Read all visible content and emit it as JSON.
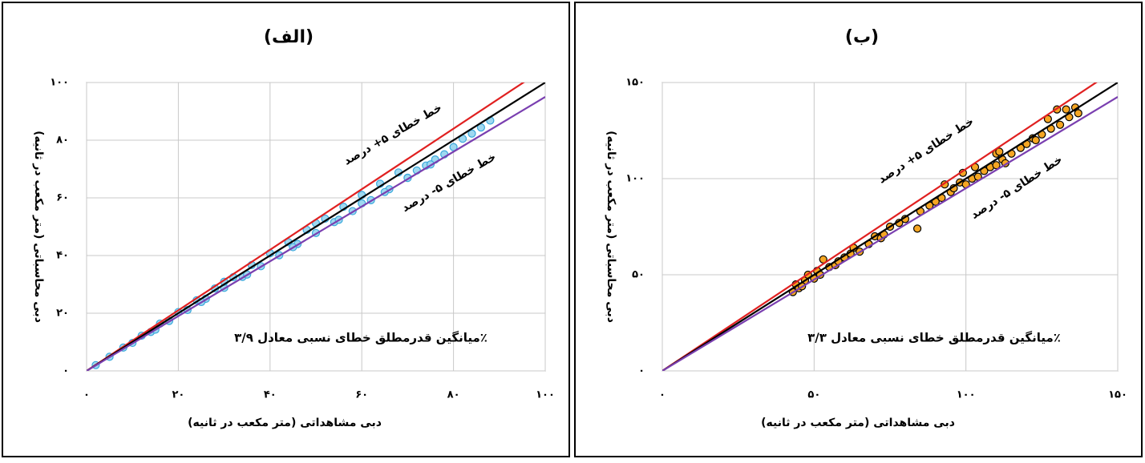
{
  "chart_data": [
    {
      "type": "scatter",
      "title": "(الف)",
      "x_label": "دبی مشاهداتی (متر مکعب در ثانیه)",
      "y_label": "دبی محاسباتی (متر مکعب در ثانیه)",
      "xlim": [
        0,
        100
      ],
      "ylim": [
        0,
        100
      ],
      "grid": true,
      "xticks": [
        {
          "value": 0,
          "label": "۰"
        },
        {
          "value": 20,
          "label": "۲۰"
        },
        {
          "value": 40,
          "label": "۴۰"
        },
        {
          "value": 60,
          "label": "۶۰"
        },
        {
          "value": 80,
          "label": "۸۰"
        },
        {
          "value": 100,
          "label": "۱۰۰"
        }
      ],
      "yticks": [
        {
          "value": 0,
          "label": "۰"
        },
        {
          "value": 20,
          "label": "۲۰"
        },
        {
          "value": 40,
          "label": "۴۰"
        },
        {
          "value": 60,
          "label": "۶۰"
        },
        {
          "value": 80,
          "label": "۸۰"
        },
        {
          "value": 100,
          "label": "۱۰۰"
        }
      ],
      "series": [
        {
          "color": "#9fd8f0",
          "edgecolor": "#3aa8dc",
          "x": [
            2,
            5,
            8,
            10,
            12,
            14,
            16,
            18,
            20,
            22,
            24,
            26,
            28,
            30,
            32,
            34,
            36,
            38,
            40,
            42,
            44,
            46,
            48,
            50,
            52,
            54,
            56,
            58,
            60,
            62,
            64,
            66,
            68,
            70,
            72,
            74,
            76,
            78,
            80,
            82,
            84,
            86,
            88,
            15,
            25,
            35,
            45,
            55,
            65,
            75,
            30,
            50,
            60,
            70
          ],
          "values": [
            2,
            4.9,
            8.1,
            9.7,
            12.2,
            13.5,
            16.4,
            17.3,
            20.4,
            21.1,
            24.5,
            25,
            28.6,
            28.8,
            32.5,
            32.6,
            36.7,
            36.3,
            40.8,
            40.1,
            44.6,
            44,
            48.9,
            47.8,
            52.8,
            51.6,
            56.9,
            55.4,
            61,
            59.2,
            64.9,
            63,
            68.8,
            67,
            69.5,
            71.2,
            73.3,
            75.1,
            77.6,
            80.5,
            82.3,
            84.4,
            86.8,
            14.3,
            23.9,
            33.4,
            42.9,
            52.4,
            62,
            71.6,
            30.9,
            51.2,
            58.1,
            66.9
          ]
        }
      ],
      "lines": [
        {
          "color": "#e02020",
          "x": [
            0,
            100
          ],
          "y": [
            0,
            105
          ]
        },
        {
          "color": "#000000",
          "x": [
            0,
            100
          ],
          "y": [
            0,
            100
          ]
        },
        {
          "color": "#7a3fb0",
          "x": [
            0,
            100
          ],
          "y": [
            0,
            95
          ]
        }
      ],
      "annotations": [
        "خط خطای ۵+ درصد",
        "خط خطای ۵- درصد",
        "میانگین قدرمطلق خطای نسبی معادل ۳/۹٪"
      ]
    },
    {
      "type": "scatter",
      "title": "(ب)",
      "x_label": "دبی مشاهداتی (متر مکعب در ثانیه)",
      "y_label": "دبی محاسباتی (متر مکعب در ثانیه)",
      "xlim": [
        0,
        150
      ],
      "ylim": [
        0,
        150
      ],
      "grid": true,
      "xticks": [
        {
          "value": 0,
          "label": "۰"
        },
        {
          "value": 50,
          "label": "۵۰"
        },
        {
          "value": 100,
          "label": "۱۰۰"
        },
        {
          "value": 150,
          "label": "۱۵۰"
        }
      ],
      "yticks": [
        {
          "value": 0,
          "label": "۰"
        },
        {
          "value": 50,
          "label": "۵۰"
        },
        {
          "value": 100,
          "label": "۱۰۰"
        },
        {
          "value": 150,
          "label": "۱۵۰"
        }
      ],
      "series": [
        {
          "color": "#f5a623",
          "edgecolor": "#000000",
          "x": [
            43,
            44,
            45,
            47,
            48,
            46,
            50,
            51,
            52,
            53,
            55,
            57,
            58,
            60,
            62,
            63,
            65,
            68,
            70,
            72,
            73,
            75,
            78,
            80,
            84,
            85,
            88,
            90,
            92,
            93,
            95,
            96,
            98,
            99,
            100,
            102,
            103,
            104,
            106,
            108,
            110,
            110,
            111,
            112,
            113,
            115,
            118,
            120,
            122,
            123,
            125,
            127,
            128,
            130,
            131,
            133,
            134,
            136,
            137
          ],
          "values": [
            41,
            45,
            43,
            47,
            50,
            44,
            48,
            52,
            50,
            58,
            54,
            55,
            57,
            59,
            61,
            64,
            62,
            66,
            70,
            69,
            71,
            75,
            77,
            79,
            74,
            83,
            86,
            88,
            90,
            97,
            93,
            95,
            98,
            103,
            97,
            100,
            106,
            101,
            104,
            106,
            113,
            107,
            114,
            110,
            108,
            113,
            116,
            118,
            121,
            120,
            123,
            131,
            126,
            136,
            128,
            136,
            132,
            137,
            134
          ]
        }
      ],
      "lines": [
        {
          "color": "#e02020",
          "x": [
            0,
            150
          ],
          "y": [
            0,
            157.5
          ]
        },
        {
          "color": "#000000",
          "x": [
            0,
            150
          ],
          "y": [
            0,
            150
          ]
        },
        {
          "color": "#7a3fb0",
          "x": [
            0,
            150
          ],
          "y": [
            0,
            142.5
          ]
        }
      ],
      "annotations": [
        "خط خطای ۵+ درصد",
        "خط خطای ۵- درصد",
        "میانگین قدرمطلق خطای نسبی معادل ۳/۳٪"
      ]
    }
  ]
}
